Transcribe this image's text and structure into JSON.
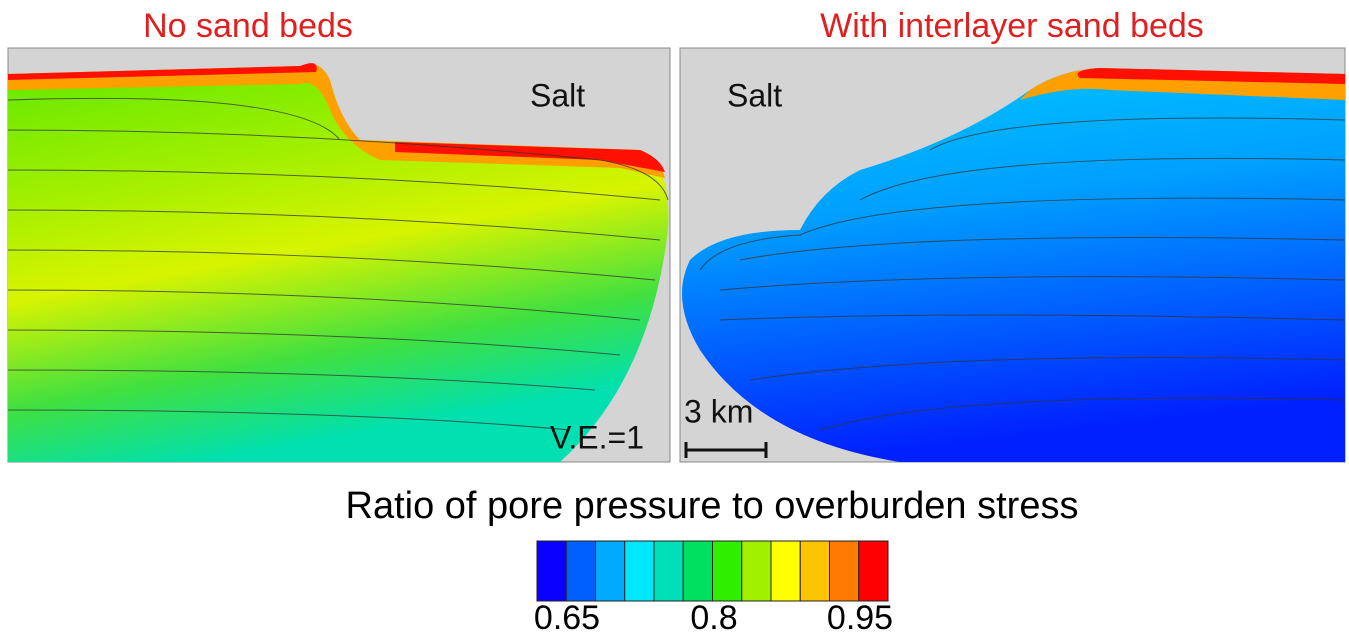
{
  "panels": [
    {
      "title": "No sand beds",
      "material_label": "Salt",
      "note": "V.E.=1"
    },
    {
      "title": "With interlayer sand beds",
      "material_label": "Salt",
      "scale_label": "3 km"
    }
  ],
  "colorbar": {
    "title": "Ratio of pore pressure to overburden stress",
    "colors": [
      "#0a00ff",
      "#0060ff",
      "#00aaff",
      "#00e8ff",
      "#00e0b8",
      "#00e060",
      "#30ee00",
      "#a0f000",
      "#ffff00",
      "#ffc400",
      "#ff7a00",
      "#ff0000"
    ],
    "tick_labels": [
      "0.65",
      "0.8",
      "0.95"
    ]
  }
}
